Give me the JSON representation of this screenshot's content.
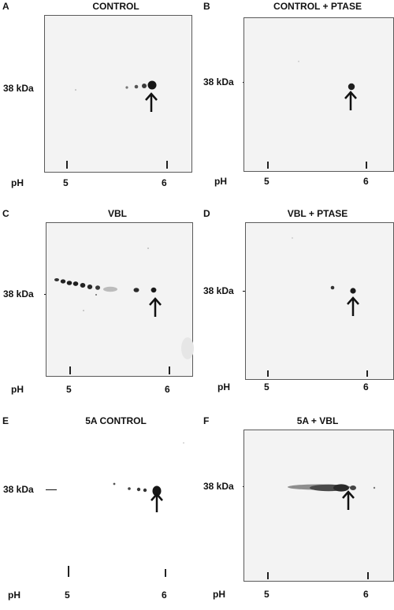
{
  "figure": {
    "molecular_weight_marker": "38 kDa",
    "axis_label": "pH",
    "panels": [
      {
        "letter": "A",
        "title": "CONTROL",
        "mw_label": "38 kDa",
        "ph_label": "pH",
        "ticks": [
          "5",
          "6"
        ]
      },
      {
        "letter": "B",
        "title": "CONTROL + PTASE",
        "mw_label": "38 kDa",
        "ph_label": "pH",
        "ticks": [
          "5",
          "6"
        ]
      },
      {
        "letter": "C",
        "title": "VBL",
        "mw_label": "38 kDa",
        "ph_label": "pH",
        "ticks": [
          "5",
          "6"
        ]
      },
      {
        "letter": "D",
        "title": "VBL + PTASE",
        "mw_label": "38 kDa",
        "ph_label": "pH",
        "ticks": [
          "5",
          "6"
        ]
      },
      {
        "letter": "E",
        "title": "5A CONTROL",
        "mw_label": "38 kDa",
        "ph_label": "pH",
        "ticks": [
          "5",
          "6"
        ]
      },
      {
        "letter": "F",
        "title": "5A + VBL",
        "mw_label": "38 kDa",
        "ph_label": "pH",
        "ticks": [
          "5",
          "6"
        ]
      }
    ]
  }
}
